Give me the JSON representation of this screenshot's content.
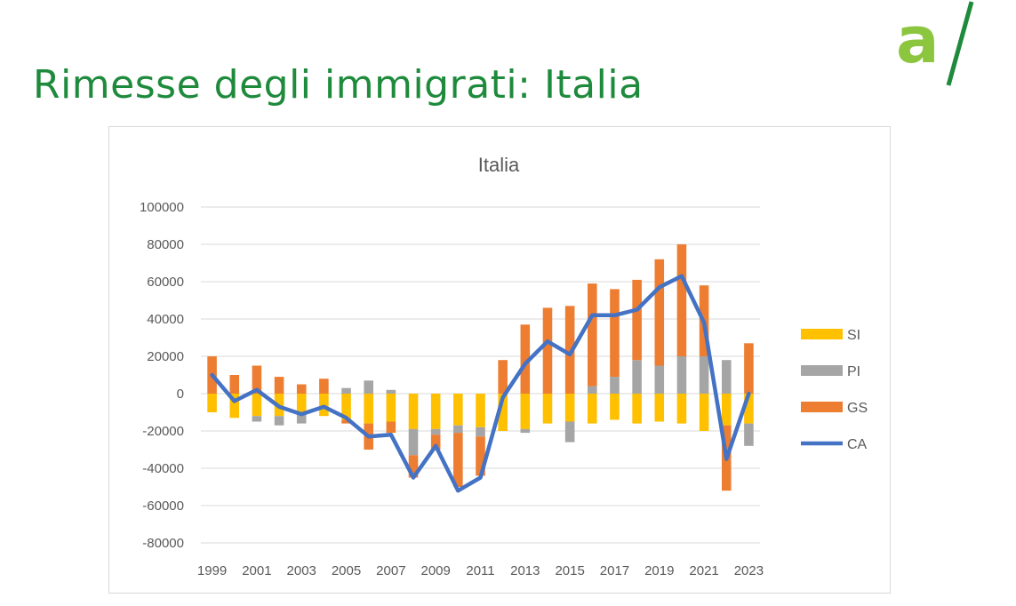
{
  "slide": {
    "title": "Rimesse degli immigrati: Italia"
  },
  "logo": {
    "name": "a-slash-logo",
    "color": "#8cc63f",
    "slash_color": "#1e8a3c"
  },
  "colors": {
    "SI": "#ffc000",
    "PI": "#a5a5a5",
    "GS": "#ed7d31",
    "CA": "#4472c4"
  },
  "chart_data": {
    "type": "bar",
    "title": "Italia",
    "xlabel": "",
    "ylabel": "",
    "ylim": [
      -80000,
      100000
    ],
    "yticks": [
      100000,
      80000,
      60000,
      40000,
      20000,
      0,
      -20000,
      -40000,
      -60000,
      -80000
    ],
    "ytick_labels": [
      "100000",
      "80000",
      "60000",
      "40000",
      "20000",
      "0",
      "-20000",
      "-40000",
      "-60000",
      "-80000"
    ],
    "categories": [
      1999,
      2000,
      2001,
      2002,
      2003,
      2004,
      2005,
      2006,
      2007,
      2008,
      2009,
      2010,
      2011,
      2012,
      2013,
      2014,
      2015,
      2016,
      2017,
      2018,
      2019,
      2020,
      2021,
      2022,
      2023
    ],
    "xtick_labels": [
      "1999",
      "2001",
      "2003",
      "2005",
      "2007",
      "2009",
      "2011",
      "2013",
      "2015",
      "2017",
      "2019",
      "2021",
      "2023"
    ],
    "stacked": true,
    "legend_position": "right",
    "grid": true,
    "series": [
      {
        "name": "SI",
        "type": "bar",
        "values": [
          -10000,
          -13000,
          -12000,
          -12000,
          -11000,
          -12000,
          -14000,
          -16000,
          -15000,
          -19000,
          -19000,
          -17000,
          -18000,
          -20000,
          -19000,
          -16000,
          -15000,
          -16000,
          -14000,
          -16000,
          -15000,
          -16000,
          -20000,
          -17000,
          -16000
        ]
      },
      {
        "name": "PI",
        "type": "bar",
        "values": [
          0,
          0,
          -3000,
          -5000,
          -5000,
          0,
          3000,
          7000,
          2000,
          -14000,
          -3000,
          -4000,
          -5000,
          0,
          -2000,
          0,
          -11000,
          4000,
          9000,
          18000,
          15000,
          20000,
          20000,
          18000,
          -12000
        ]
      },
      {
        "name": "GS",
        "type": "bar",
        "values": [
          20000,
          10000,
          15000,
          9000,
          5000,
          8000,
          -2000,
          -14000,
          -6000,
          -12000,
          -8000,
          -29000,
          -21000,
          18000,
          37000,
          46000,
          47000,
          55000,
          47000,
          43000,
          57000,
          60000,
          38000,
          -35000,
          27000
        ]
      },
      {
        "name": "CA",
        "type": "line",
        "values": [
          10000,
          -4000,
          2000,
          -7000,
          -11000,
          -7000,
          -13000,
          -23000,
          -22000,
          -45000,
          -28000,
          -52000,
          -45000,
          -2000,
          16000,
          28000,
          21000,
          42000,
          42000,
          45000,
          57000,
          63000,
          38000,
          -35000,
          0
        ]
      }
    ]
  }
}
